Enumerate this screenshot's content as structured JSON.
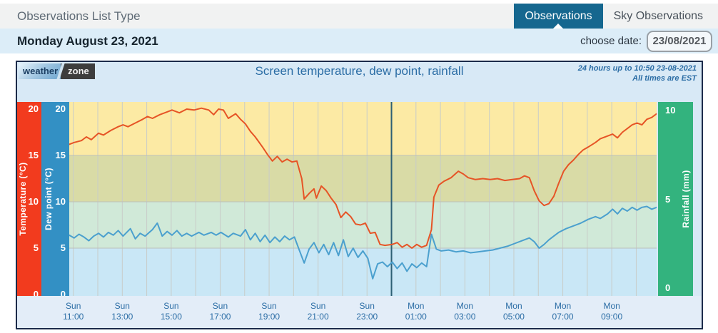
{
  "toolbar": {
    "list_type_label": "Observations List Type",
    "tabs": [
      {
        "label": "Observations",
        "active": true
      },
      {
        "label": "Sky Observations",
        "active": false
      }
    ]
  },
  "date_bar": {
    "heading": "Monday August 23, 2021",
    "choose_label": "choose date:",
    "date_value": "23/08/2021"
  },
  "chart": {
    "logo_part1": "weather",
    "logo_part2": "zone",
    "title": "Screen temperature, dew point, rainfall",
    "info_line1": "24 hours up to 10:50 23-08-2021",
    "info_line2": "All times are EST",
    "axes": {
      "temperature": {
        "label": "Temperature (°C)",
        "ticks": [
          "20",
          "15",
          "10",
          "5",
          "0"
        ],
        "bar_color": "#f23b1e"
      },
      "dew_point": {
        "label": "Dew point (°C)",
        "ticks": [
          "20",
          "15",
          "10",
          "5",
          "0"
        ],
        "bar_color": "#3390c4"
      },
      "rainfall": {
        "label": "Rainfall (mm)",
        "ticks": [
          "10",
          "5",
          "0"
        ],
        "bar_color": "#33b37e"
      }
    },
    "x_ticks": [
      {
        "day": "Sun",
        "time": "11:00"
      },
      {
        "day": "Sun",
        "time": "13:00"
      },
      {
        "day": "Sun",
        "time": "15:00"
      },
      {
        "day": "Sun",
        "time": "17:00"
      },
      {
        "day": "Sun",
        "time": "19:00"
      },
      {
        "day": "Sun",
        "time": "21:00"
      },
      {
        "day": "Sun",
        "time": "23:00"
      },
      {
        "day": "Mon",
        "time": "01:00"
      },
      {
        "day": "Mon",
        "time": "03:00"
      },
      {
        "day": "Mon",
        "time": "05:00"
      },
      {
        "day": "Mon",
        "time": "07:00"
      },
      {
        "day": "Mon",
        "time": "09:00"
      }
    ]
  },
  "colors": {
    "active_tab": "#15678f",
    "chart_background": "#d8e9f6",
    "chart_border": "#1c2b4a",
    "heading_text": "#2b6da5"
  },
  "chart_data": {
    "type": "line",
    "title": "Screen temperature, dew point, rainfall",
    "subtitle": "24 hours up to 10:50 23-08-2021, all times EST",
    "x_unit": "hours since Sun 10:50 EST",
    "x_range": [
      0,
      24
    ],
    "y_left_label": "Temperature / Dew point (°C)",
    "y_left_range": [
      0,
      20
    ],
    "y_right_label": "Rainfall (mm)",
    "y_right_range": [
      0,
      10
    ],
    "grid": true,
    "legend_position": "none",
    "first_gridline_hour": 0.167,
    "midnight_line_hour": 13.167,
    "midnight_line_color": "#2d5f74",
    "gridline_color": "#c8ccc8",
    "x_tick_hours": [
      0.167,
      2.167,
      4.167,
      6.167,
      8.167,
      10.167,
      12.167,
      14.167,
      16.167,
      18.167,
      20.167,
      22.167
    ],
    "bands": [
      {
        "from": 15,
        "to": 20.8,
        "color": "#fceaa4"
      },
      {
        "from": 10,
        "to": 15,
        "color": "#d9dba6"
      },
      {
        "from": 5,
        "to": 10,
        "color": "#d0e9d8"
      },
      {
        "from": -0.2,
        "to": 5,
        "color": "#c9e7f6"
      }
    ],
    "series": [
      {
        "name": "Screen temperature",
        "color": "#e65426",
        "points": [
          [
            0,
            16.2
          ],
          [
            0.2,
            16.4
          ],
          [
            0.5,
            16.6
          ],
          [
            0.7,
            17.0
          ],
          [
            0.9,
            16.7
          ],
          [
            1.2,
            17.4
          ],
          [
            1.4,
            17.2
          ],
          [
            1.7,
            17.7
          ],
          [
            2.0,
            18.1
          ],
          [
            2.2,
            18.3
          ],
          [
            2.4,
            18.1
          ],
          [
            2.7,
            18.5
          ],
          [
            3.0,
            18.9
          ],
          [
            3.2,
            19.2
          ],
          [
            3.4,
            19.0
          ],
          [
            3.7,
            19.4
          ],
          [
            4.0,
            19.7
          ],
          [
            4.2,
            19.9
          ],
          [
            4.5,
            19.6
          ],
          [
            4.8,
            20.0
          ],
          [
            5.1,
            19.9
          ],
          [
            5.4,
            20.1
          ],
          [
            5.7,
            19.9
          ],
          [
            5.9,
            19.4
          ],
          [
            6.1,
            20.0
          ],
          [
            6.3,
            19.9
          ],
          [
            6.5,
            19.0
          ],
          [
            6.8,
            19.5
          ],
          [
            7.0,
            18.9
          ],
          [
            7.2,
            18.4
          ],
          [
            7.4,
            17.6
          ],
          [
            7.6,
            17.0
          ],
          [
            7.9,
            15.9
          ],
          [
            8.1,
            15.1
          ],
          [
            8.3,
            14.4
          ],
          [
            8.5,
            14.9
          ],
          [
            8.7,
            14.3
          ],
          [
            8.9,
            14.6
          ],
          [
            9.1,
            14.3
          ],
          [
            9.3,
            14.4
          ],
          [
            9.5,
            12.5
          ],
          [
            9.6,
            10.3
          ],
          [
            9.8,
            10.9
          ],
          [
            10.0,
            11.4
          ],
          [
            10.1,
            10.4
          ],
          [
            10.3,
            11.7
          ],
          [
            10.5,
            11.2
          ],
          [
            10.7,
            10.4
          ],
          [
            10.9,
            9.7
          ],
          [
            11.1,
            8.3
          ],
          [
            11.3,
            8.9
          ],
          [
            11.5,
            8.4
          ],
          [
            11.7,
            7.6
          ],
          [
            11.9,
            7.5
          ],
          [
            12.1,
            7.7
          ],
          [
            12.3,
            6.6
          ],
          [
            12.5,
            6.7
          ],
          [
            12.7,
            5.4
          ],
          [
            12.9,
            5.3
          ],
          [
            13.2,
            5.4
          ],
          [
            13.4,
            5.6
          ],
          [
            13.6,
            5.1
          ],
          [
            13.8,
            5.4
          ],
          [
            14.0,
            5.0
          ],
          [
            14.2,
            5.4
          ],
          [
            14.4,
            5.1
          ],
          [
            14.6,
            5.3
          ],
          [
            14.8,
            7.0
          ],
          [
            14.9,
            10.5
          ],
          [
            15.1,
            11.8
          ],
          [
            15.3,
            12.2
          ],
          [
            15.6,
            12.6
          ],
          [
            15.9,
            13.3
          ],
          [
            16.1,
            13.0
          ],
          [
            16.3,
            12.6
          ],
          [
            16.6,
            12.4
          ],
          [
            16.9,
            12.5
          ],
          [
            17.2,
            12.4
          ],
          [
            17.5,
            12.5
          ],
          [
            17.8,
            12.3
          ],
          [
            18.1,
            12.4
          ],
          [
            18.4,
            12.5
          ],
          [
            18.6,
            12.8
          ],
          [
            18.8,
            12.6
          ],
          [
            19.0,
            11.2
          ],
          [
            19.2,
            10.1
          ],
          [
            19.4,
            9.6
          ],
          [
            19.6,
            9.8
          ],
          [
            19.8,
            10.6
          ],
          [
            20.0,
            12.0
          ],
          [
            20.2,
            13.3
          ],
          [
            20.4,
            14.0
          ],
          [
            20.6,
            14.5
          ],
          [
            20.8,
            15.1
          ],
          [
            21.0,
            15.6
          ],
          [
            21.2,
            15.9
          ],
          [
            21.5,
            16.4
          ],
          [
            21.7,
            16.8
          ],
          [
            22.0,
            17.1
          ],
          [
            22.2,
            17.3
          ],
          [
            22.4,
            16.9
          ],
          [
            22.6,
            17.5
          ],
          [
            22.8,
            17.9
          ],
          [
            23.0,
            18.3
          ],
          [
            23.2,
            18.5
          ],
          [
            23.4,
            18.3
          ],
          [
            23.6,
            18.9
          ],
          [
            23.8,
            19.1
          ],
          [
            24.0,
            19.5
          ]
        ]
      },
      {
        "name": "Dew point",
        "color": "#4ba0ce",
        "points": [
          [
            0,
            6.4
          ],
          [
            0.2,
            6.1
          ],
          [
            0.4,
            6.5
          ],
          [
            0.6,
            6.2
          ],
          [
            0.8,
            5.8
          ],
          [
            1.0,
            6.3
          ],
          [
            1.2,
            6.6
          ],
          [
            1.4,
            6.2
          ],
          [
            1.6,
            6.7
          ],
          [
            1.8,
            6.4
          ],
          [
            2.0,
            6.9
          ],
          [
            2.2,
            6.3
          ],
          [
            2.5,
            7.1
          ],
          [
            2.7,
            6.0
          ],
          [
            2.9,
            6.6
          ],
          [
            3.1,
            6.3
          ],
          [
            3.4,
            7.0
          ],
          [
            3.6,
            7.7
          ],
          [
            3.8,
            6.3
          ],
          [
            4.0,
            6.8
          ],
          [
            4.2,
            6.4
          ],
          [
            4.4,
            6.9
          ],
          [
            4.6,
            6.3
          ],
          [
            4.8,
            6.6
          ],
          [
            5.0,
            6.3
          ],
          [
            5.3,
            6.7
          ],
          [
            5.5,
            6.4
          ],
          [
            5.8,
            6.7
          ],
          [
            6.0,
            6.4
          ],
          [
            6.2,
            6.7
          ],
          [
            6.5,
            6.2
          ],
          [
            6.7,
            6.6
          ],
          [
            7.0,
            6.3
          ],
          [
            7.2,
            7.0
          ],
          [
            7.4,
            5.9
          ],
          [
            7.6,
            6.6
          ],
          [
            7.8,
            5.7
          ],
          [
            8.0,
            6.4
          ],
          [
            8.2,
            5.6
          ],
          [
            8.4,
            6.2
          ],
          [
            8.6,
            5.7
          ],
          [
            8.8,
            6.3
          ],
          [
            9.0,
            5.9
          ],
          [
            9.2,
            6.2
          ],
          [
            9.4,
            4.8
          ],
          [
            9.6,
            3.4
          ],
          [
            9.8,
            4.9
          ],
          [
            10.0,
            5.6
          ],
          [
            10.2,
            4.5
          ],
          [
            10.4,
            5.4
          ],
          [
            10.6,
            4.3
          ],
          [
            10.8,
            5.6
          ],
          [
            11.0,
            4.2
          ],
          [
            11.2,
            5.9
          ],
          [
            11.4,
            4.1
          ],
          [
            11.6,
            5.0
          ],
          [
            11.8,
            4.0
          ],
          [
            12.0,
            4.7
          ],
          [
            12.2,
            3.9
          ],
          [
            12.4,
            1.7
          ],
          [
            12.6,
            3.3
          ],
          [
            12.8,
            3.5
          ],
          [
            13.0,
            3.0
          ],
          [
            13.2,
            3.5
          ],
          [
            13.4,
            2.8
          ],
          [
            13.6,
            3.4
          ],
          [
            13.8,
            2.5
          ],
          [
            14.0,
            3.3
          ],
          [
            14.2,
            2.9
          ],
          [
            14.4,
            3.4
          ],
          [
            14.6,
            3.0
          ],
          [
            14.8,
            6.5
          ],
          [
            15.0,
            4.9
          ],
          [
            15.2,
            4.7
          ],
          [
            15.5,
            4.8
          ],
          [
            15.8,
            4.6
          ],
          [
            16.1,
            4.7
          ],
          [
            16.4,
            4.5
          ],
          [
            16.7,
            4.6
          ],
          [
            17.0,
            4.7
          ],
          [
            17.3,
            4.8
          ],
          [
            17.6,
            5.0
          ],
          [
            17.9,
            5.2
          ],
          [
            18.2,
            5.5
          ],
          [
            18.5,
            5.8
          ],
          [
            18.8,
            6.1
          ],
          [
            19.0,
            5.7
          ],
          [
            19.2,
            5.0
          ],
          [
            19.4,
            5.4
          ],
          [
            19.6,
            5.9
          ],
          [
            19.8,
            6.3
          ],
          [
            20.0,
            6.7
          ],
          [
            20.3,
            7.1
          ],
          [
            20.6,
            7.4
          ],
          [
            20.9,
            7.7
          ],
          [
            21.2,
            8.1
          ],
          [
            21.5,
            8.4
          ],
          [
            21.7,
            8.2
          ],
          [
            22.0,
            8.7
          ],
          [
            22.2,
            9.2
          ],
          [
            22.4,
            8.7
          ],
          [
            22.6,
            9.3
          ],
          [
            22.8,
            9.0
          ],
          [
            23.0,
            9.4
          ],
          [
            23.2,
            9.1
          ],
          [
            23.4,
            9.4
          ],
          [
            23.6,
            9.5
          ],
          [
            23.8,
            9.2
          ],
          [
            24.0,
            9.4
          ]
        ]
      },
      {
        "name": "Rainfall",
        "color": "#33b37e",
        "points": [],
        "note": "no rainfall bars visible (0 mm)"
      }
    ]
  }
}
